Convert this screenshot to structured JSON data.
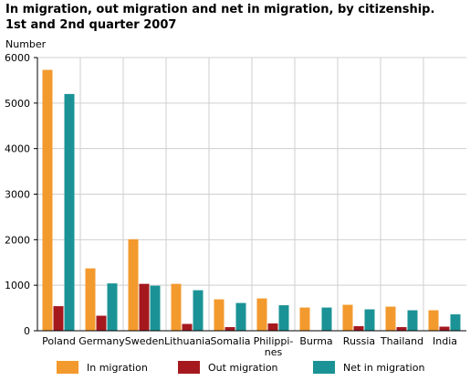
{
  "chart_data": {
    "type": "bar",
    "title": "In migration, out migration and net in migration, by citizenship.",
    "subtitle": "1st and 2nd quarter 2007",
    "ylabel": "Number",
    "xlabel": "",
    "ylim": [
      0,
      6000
    ],
    "yticks": [
      0,
      1000,
      2000,
      3000,
      4000,
      5000,
      6000
    ],
    "grid": true,
    "legend_position": "bottom",
    "categories": [
      [
        "Poland"
      ],
      [
        "Germany"
      ],
      [
        "Sweden"
      ],
      [
        "Lithuania"
      ],
      [
        "Somalia"
      ],
      [
        "Philippi-",
        "nes"
      ],
      [
        "Burma"
      ],
      [
        "Russia"
      ],
      [
        "Thailand"
      ],
      [
        "India"
      ]
    ],
    "series": [
      {
        "name": "In migration",
        "color": "#f39a2e",
        "values": [
          5730,
          1370,
          2010,
          1030,
          690,
          710,
          510,
          570,
          530,
          450
        ]
      },
      {
        "name": "Out migration",
        "color": "#a5191e",
        "values": [
          540,
          330,
          1030,
          150,
          80,
          160,
          10,
          100,
          80,
          90
        ]
      },
      {
        "name": "Net in migration",
        "color": "#1b9396",
        "values": [
          5200,
          1040,
          990,
          890,
          610,
          560,
          510,
          470,
          450,
          360
        ]
      }
    ]
  }
}
